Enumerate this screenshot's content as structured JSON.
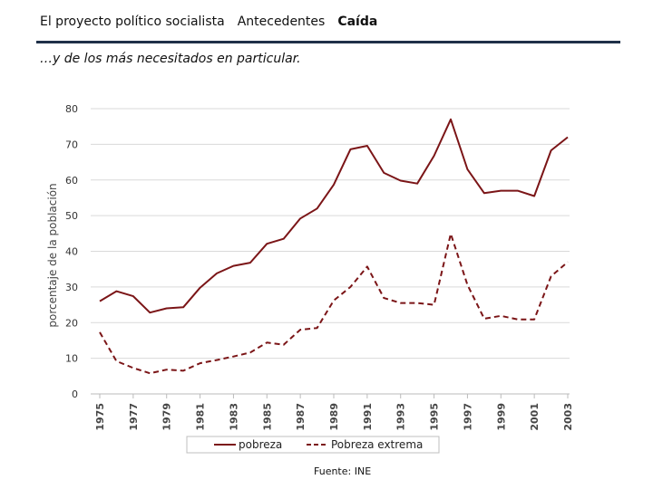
{
  "nav": {
    "items": [
      "El proyecto político socialista",
      "Antecedentes",
      "Caída"
    ],
    "active_index": 2
  },
  "subtitle": "…y de los más necesitados en particular.",
  "source": "Fuente: INE",
  "colors": {
    "series_color": "#7b1517",
    "rule": "#1f3049",
    "grid": "#d9d9d9"
  },
  "chart_data": {
    "type": "line",
    "title": "",
    "ylabel": "porcentaje de la población",
    "xlabel": "",
    "ylim": [
      0,
      80
    ],
    "yticks": [
      0,
      10,
      20,
      30,
      40,
      50,
      60,
      70,
      80
    ],
    "xlim": [
      1975,
      2003
    ],
    "xticks": [
      "1975",
      "1977",
      "1979",
      "1981",
      "1983",
      "1985",
      "1987",
      "1989",
      "1991",
      "1993",
      "1995",
      "1997",
      "1999",
      "2001",
      "2003"
    ],
    "legend_position": "bottom",
    "series": [
      {
        "name": "pobreza",
        "style": "solid",
        "x": [
          1975,
          1976,
          1977,
          1978,
          1979,
          1980,
          1981,
          1982,
          1983,
          1984,
          1985,
          1986,
          1987,
          1988,
          1989,
          1990,
          1991,
          1992,
          1993,
          1994,
          1995,
          1996,
          1997,
          1998,
          1999,
          2000,
          2001,
          2002,
          2003
        ],
        "values": [
          26,
          28.8,
          27.4,
          22.8,
          24,
          24.3,
          29.8,
          33.8,
          35.9,
          36.8,
          42.1,
          43.5,
          49.2,
          52,
          58.7,
          68.6,
          69.6,
          62,
          59.8,
          59,
          66.8,
          77,
          63,
          56.3,
          57,
          57,
          55.5,
          68.3,
          72
        ]
      },
      {
        "name": "Pobreza extrema",
        "style": "dashed",
        "x": [
          1975,
          1976,
          1977,
          1978,
          1979,
          1980,
          1981,
          1982,
          1983,
          1984,
          1985,
          1986,
          1987,
          1988,
          1989,
          1990,
          1991,
          1992,
          1993,
          1994,
          1995,
          1996,
          1997,
          1998,
          1999,
          2000,
          2001,
          2002,
          2003
        ],
        "values": [
          17.3,
          9.2,
          7.3,
          5.8,
          6.8,
          6.5,
          8.6,
          9.5,
          10.5,
          11.6,
          14.4,
          13.8,
          18,
          18.5,
          26.2,
          30,
          35.7,
          26.9,
          25.5,
          25.5,
          25,
          44.9,
          30.6,
          21.1,
          21.9,
          20.9,
          20.9,
          33,
          37
        ]
      }
    ]
  }
}
